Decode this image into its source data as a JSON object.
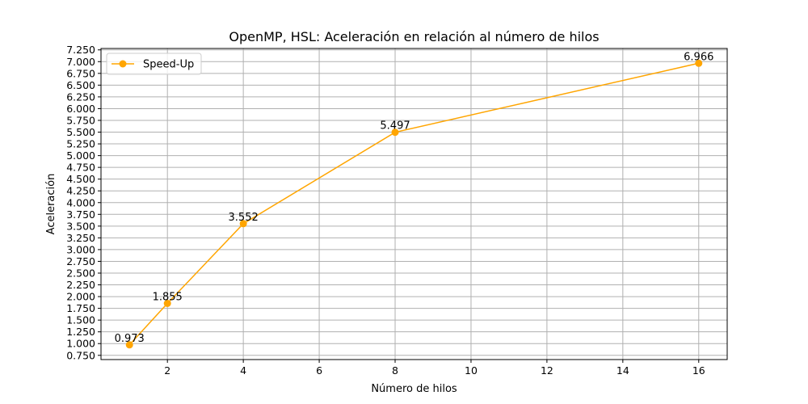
{
  "chart_data": {
    "type": "line",
    "title": "OpenMP, HSL: Aceleración en relación al número de hilos",
    "xlabel": "Número de hilos",
    "ylabel": "Aceleración",
    "xlim": [
      0.25,
      16.75
    ],
    "ylim": [
      0.66,
      7.28
    ],
    "xticks": [
      2,
      4,
      6,
      8,
      10,
      12,
      14,
      16
    ],
    "yticks": [
      0.75,
      1.0,
      1.25,
      1.5,
      1.75,
      2.0,
      2.25,
      2.5,
      2.75,
      3.0,
      3.25,
      3.5,
      3.75,
      4.0,
      4.25,
      4.5,
      4.75,
      5.0,
      5.25,
      5.5,
      5.75,
      6.0,
      6.25,
      6.5,
      6.75,
      7.0,
      7.25
    ],
    "ytick_decimals": 3,
    "grid": true,
    "legend_position": "top-left",
    "series": [
      {
        "name": "Speed-Up",
        "color": "#ffa500",
        "marker": "circle",
        "x": [
          1,
          2,
          4,
          8,
          16
        ],
        "y": [
          0.973,
          1.855,
          3.552,
          5.497,
          6.966
        ],
        "labels": [
          "0.973",
          "1.855",
          "3.552",
          "5.497",
          "6.966"
        ]
      }
    ]
  }
}
